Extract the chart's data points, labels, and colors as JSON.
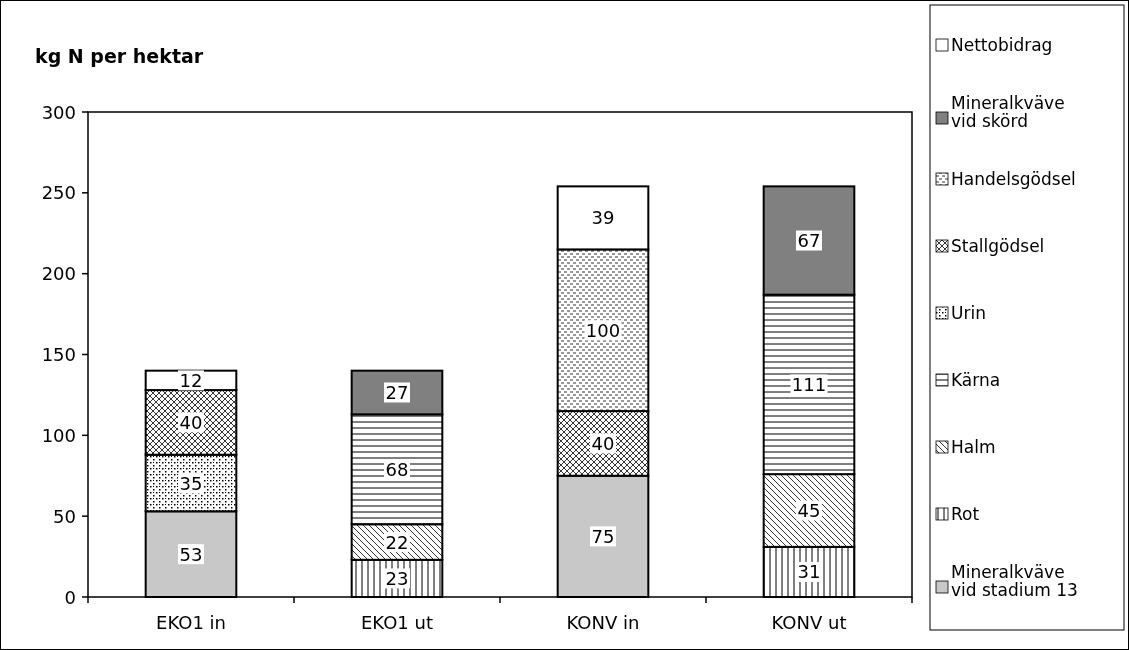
{
  "chart_data": {
    "type": "bar",
    "stacked": true,
    "title": "kg N per hektar",
    "categories": [
      "EKO1 in",
      "EKO1 ut",
      "KONV in",
      "KONV ut"
    ],
    "series": [
      {
        "name": "Mineralkväve vid stadium 13",
        "color": "#c8c8c8",
        "values": [
          53,
          null,
          75,
          null
        ]
      },
      {
        "name": "Rot",
        "color": "#000000",
        "values": [
          null,
          23,
          null,
          31
        ]
      },
      {
        "name": "Halm",
        "color": "#000000",
        "values": [
          null,
          22,
          null,
          45
        ]
      },
      {
        "name": "Kärna",
        "color": "#000000",
        "values": [
          null,
          68,
          null,
          111
        ]
      },
      {
        "name": "Urin",
        "color": "#000000",
        "values": [
          35,
          null,
          null,
          null
        ]
      },
      {
        "name": "Stallgödsel",
        "color": "#000000",
        "values": [
          40,
          null,
          40,
          null
        ]
      },
      {
        "name": "Handelsgödsel",
        "color": "#000000",
        "values": [
          null,
          null,
          100,
          null
        ]
      },
      {
        "name": "Mineralkväve vid skörd",
        "color": "#808080",
        "values": [
          null,
          27,
          null,
          67
        ]
      },
      {
        "name": "Nettobidrag",
        "color": "#ffffff",
        "values": [
          12,
          null,
          39,
          null
        ]
      }
    ],
    "ylim": [
      0,
      300
    ],
    "yticks": [
      0,
      50,
      100,
      150,
      200,
      250,
      300
    ],
    "data_labels": true,
    "legend": "right",
    "grid": false
  }
}
